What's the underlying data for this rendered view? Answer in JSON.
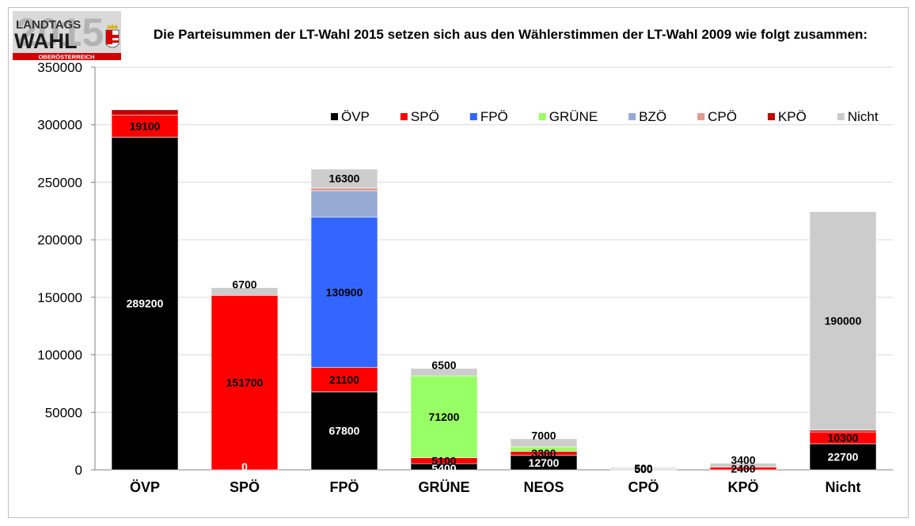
{
  "logo": {
    "year": "2015",
    "line1": "LANDTAGS",
    "line2": "WAHL",
    "line3": "OBERÖSTERREICH"
  },
  "chart_data": {
    "type": "bar",
    "stacked": true,
    "title": "Die Parteisummen der LT-Wahl 2015 setzen sich aus den Wählerstimmen der LT-Wahl 2009 wie folgt zusammen:",
    "xlabel": "",
    "ylabel": "",
    "ylim": [
      0,
      350000
    ],
    "yticks": [
      0,
      50000,
      100000,
      150000,
      200000,
      250000,
      300000,
      350000
    ],
    "grid": true,
    "legend_position": "top-right",
    "categories": [
      "ÖVP",
      "SPÖ",
      "FPÖ",
      "GRÜNE",
      "NEOS",
      "CPÖ",
      "KPÖ",
      "Nicht"
    ],
    "series": [
      {
        "name": "ÖVP",
        "color": "#000000",
        "values": [
          289200,
          0,
          67800,
          5400,
          12700,
          500,
          0,
          22700
        ]
      },
      {
        "name": "SPÖ",
        "color": "#ff0000",
        "values": [
          19100,
          151700,
          21100,
          5100,
          3300,
          500,
          2400,
          10300
        ]
      },
      {
        "name": "FPÖ",
        "color": "#3366ff",
        "values": [
          0,
          0,
          130900,
          0,
          0,
          0,
          0,
          0
        ]
      },
      {
        "name": "GRÜNE",
        "color": "#99ff66",
        "values": [
          0,
          0,
          0,
          71200,
          4000,
          0,
          0,
          0
        ]
      },
      {
        "name": "BZÖ",
        "color": "#95a9d3",
        "values": [
          0,
          0,
          22800,
          0,
          0,
          0,
          0,
          0
        ]
      },
      {
        "name": "CPÖ",
        "color": "#e39a92",
        "values": [
          0,
          0,
          2500,
          0,
          0,
          0,
          0,
          0
        ]
      },
      {
        "name": "KPÖ",
        "color": "#c00000",
        "values": [
          4700,
          0,
          0,
          0,
          0,
          0,
          0,
          1500
        ]
      },
      {
        "name": "Nicht",
        "color": "#cccccc",
        "values": [
          0,
          6700,
          16300,
          6500,
          7000,
          1000,
          3400,
          190000
        ]
      }
    ],
    "data_labels": [
      {
        "category": "ÖVP",
        "series": "ÖVP",
        "text": "289200",
        "color": "#ffffff"
      },
      {
        "category": "ÖVP",
        "series": "SPÖ",
        "text": "19100",
        "color": "#000000"
      },
      {
        "category": "SPÖ",
        "series": "ÖVP",
        "text": "0",
        "color": "#ffffff"
      },
      {
        "category": "SPÖ",
        "series": "SPÖ",
        "text": "151700",
        "color": "#000000"
      },
      {
        "category": "SPÖ",
        "series": "Nicht",
        "text": "6700",
        "color": "#000000"
      },
      {
        "category": "FPÖ",
        "series": "ÖVP",
        "text": "67800",
        "color": "#ffffff"
      },
      {
        "category": "FPÖ",
        "series": "SPÖ",
        "text": "21100",
        "color": "#000000"
      },
      {
        "category": "FPÖ",
        "series": "FPÖ",
        "text": "130900",
        "color": "#000000"
      },
      {
        "category": "FPÖ",
        "series": "Nicht",
        "text": "16300",
        "color": "#000000"
      },
      {
        "category": "GRÜNE",
        "series": "ÖVP",
        "text": "5400",
        "color": "#ffffff"
      },
      {
        "category": "GRÜNE",
        "series": "SPÖ",
        "text": "5100",
        "color": "#000000"
      },
      {
        "category": "GRÜNE",
        "series": "GRÜNE",
        "text": "71200",
        "color": "#000000"
      },
      {
        "category": "GRÜNE",
        "series": "Nicht",
        "text": "6500",
        "color": "#000000"
      },
      {
        "category": "NEOS",
        "series": "ÖVP",
        "text": "12700",
        "color": "#ffffff"
      },
      {
        "category": "NEOS",
        "series": "SPÖ",
        "text": "3300",
        "color": "#000000"
      },
      {
        "category": "NEOS",
        "series": "Nicht",
        "text": "7000",
        "color": "#000000"
      },
      {
        "category": "CPÖ",
        "series": "ÖVP",
        "text": "500",
        "color": "#000000"
      },
      {
        "category": "CPÖ",
        "series": "SPÖ",
        "text": "500",
        "color": "#000000"
      },
      {
        "category": "KPÖ",
        "series": "SPÖ",
        "text": "2400",
        "color": "#000000"
      },
      {
        "category": "KPÖ",
        "series": "Nicht",
        "text": "3400",
        "color": "#000000"
      },
      {
        "category": "Nicht",
        "series": "ÖVP",
        "text": "22700",
        "color": "#ffffff"
      },
      {
        "category": "Nicht",
        "series": "SPÖ",
        "text": "10300",
        "color": "#000000"
      },
      {
        "category": "Nicht",
        "series": "Nicht",
        "text": "190000",
        "color": "#000000"
      }
    ]
  }
}
